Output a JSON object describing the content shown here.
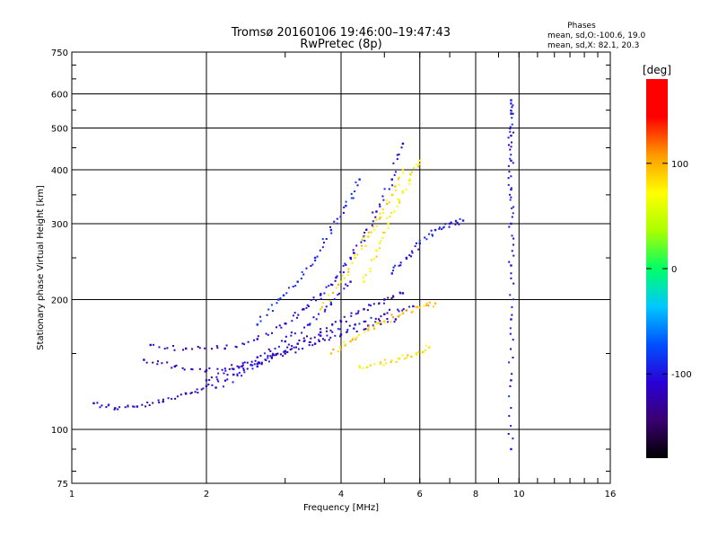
{
  "chart_data": {
    "type": "scatter",
    "title": "Tromsø 20160106 19:46:00–19:47:43",
    "subtitle": "RwPretec (8p)",
    "xlabel": "Frequency [MHz]",
    "ylabel": "Stationary phase Virtual Height [km]",
    "x_scale": "log",
    "y_scale": "log",
    "xlim": [
      1,
      16
    ],
    "ylim": [
      75,
      750
    ],
    "x_ticks": [
      1,
      2,
      4,
      6,
      8,
      10,
      16
    ],
    "y_ticks": [
      75,
      100,
      200,
      300,
      400,
      500,
      600,
      750
    ],
    "grid": true,
    "stats": {
      "heading": "Phases",
      "line_o": "mean, sd,O:-100.6, 19.0",
      "line_x": "mean, sd,X:  82.1, 20.3"
    },
    "colorbar": {
      "label": "[deg]",
      "min": -180,
      "max": 180,
      "ticks": [
        100,
        0,
        -100
      ],
      "stops": [
        "#000000",
        "#3a0070",
        "#2a00d6",
        "#0050ff",
        "#00c8ff",
        "#00ff66",
        "#aaff00",
        "#ffff00",
        "#ff9900",
        "#ff0000",
        "#ff0000"
      ]
    },
    "traces": [
      {
        "name": "",
        "color_phase": -110,
        "points": [
          [
            1.12,
            115
          ],
          [
            1.25,
            112
          ],
          [
            1.4,
            113
          ],
          [
            1.6,
            116
          ],
          [
            1.8,
            121
          ],
          [
            2.0,
            126
          ],
          [
            2.3,
            134
          ],
          [
            2.6,
            142
          ],
          [
            3.0,
            150
          ],
          [
            3.5,
            158
          ],
          [
            4.0,
            166
          ],
          [
            4.6,
            174
          ],
          [
            5.3,
            180
          ]
        ]
      },
      {
        "name": "",
        "color_phase": -115,
        "points": [
          [
            1.45,
            145
          ],
          [
            1.7,
            140
          ],
          [
            2.0,
            137
          ],
          [
            2.4,
            140
          ],
          [
            2.8,
            147
          ],
          [
            3.2,
            158
          ],
          [
            3.6,
            168
          ],
          [
            4.0,
            178
          ],
          [
            4.5,
            190
          ],
          [
            5.0,
            200
          ],
          [
            5.5,
            207
          ]
        ]
      },
      {
        "name": "",
        "color_phase": -110,
        "points": [
          [
            1.5,
            157
          ],
          [
            1.8,
            154
          ],
          [
            2.2,
            154
          ],
          [
            2.6,
            162
          ],
          [
            3.0,
            176
          ],
          [
            3.3,
            190
          ],
          [
            3.6,
            205
          ],
          [
            3.9,
            225
          ],
          [
            4.2,
            250
          ],
          [
            4.5,
            280
          ],
          [
            4.8,
            320
          ],
          [
            5.2,
            380
          ],
          [
            5.5,
            460
          ]
        ]
      },
      {
        "name": "",
        "color_phase": -100,
        "points": [
          [
            2.0,
            130
          ],
          [
            2.3,
            138
          ],
          [
            2.6,
            147
          ],
          [
            3.0,
            160
          ],
          [
            3.4,
            175
          ],
          [
            3.8,
            195
          ],
          [
            4.2,
            220
          ]
        ]
      },
      {
        "name": "",
        "color_phase": -105,
        "points": [
          [
            2.1,
            125
          ],
          [
            2.6,
            140
          ],
          [
            3.0,
            152
          ],
          [
            3.6,
            165
          ],
          [
            4.3,
            175
          ],
          [
            5.0,
            185
          ],
          [
            5.8,
            193
          ]
        ]
      },
      {
        "name": "",
        "color_phase": -90,
        "points": [
          [
            2.6,
            175
          ],
          [
            2.9,
            200
          ],
          [
            3.2,
            220
          ],
          [
            3.5,
            250
          ],
          [
            3.8,
            290
          ],
          [
            4.1,
            330
          ],
          [
            4.4,
            380
          ]
        ]
      },
      {
        "name": "",
        "color_phase": 85,
        "points": [
          [
            3.6,
            190
          ],
          [
            4.0,
            220
          ],
          [
            4.3,
            250
          ],
          [
            4.6,
            280
          ],
          [
            4.9,
            310
          ],
          [
            5.2,
            350
          ],
          [
            5.5,
            400
          ]
        ]
      },
      {
        "name": "",
        "color_phase": 95,
        "points": [
          [
            3.8,
            150
          ],
          [
            4.2,
            160
          ],
          [
            4.6,
            170
          ],
          [
            5.0,
            178
          ],
          [
            5.5,
            186
          ],
          [
            6.0,
            192
          ],
          [
            6.5,
            196
          ]
        ]
      },
      {
        "name": "",
        "color_phase": 80,
        "points": [
          [
            4.4,
            140
          ],
          [
            4.9,
            142
          ],
          [
            5.4,
            146
          ],
          [
            5.9,
            150
          ],
          [
            6.3,
            155
          ]
        ]
      },
      {
        "name": "",
        "color_phase": 75,
        "points": [
          [
            4.5,
            220
          ],
          [
            4.8,
            260
          ],
          [
            5.1,
            300
          ],
          [
            5.4,
            340
          ],
          [
            5.7,
            380
          ],
          [
            6.0,
            420
          ]
        ]
      },
      {
        "name": "",
        "color_phase": -95,
        "points": [
          [
            5.2,
            230
          ],
          [
            5.6,
            250
          ],
          [
            6.0,
            270
          ],
          [
            6.5,
            290
          ],
          [
            7.0,
            300
          ],
          [
            7.5,
            305
          ]
        ]
      },
      {
        "name": "",
        "color_phase": -100,
        "points": [
          [
            9.6,
            90
          ],
          [
            9.6,
            130
          ],
          [
            9.6,
            180
          ],
          [
            9.6,
            240
          ],
          [
            9.6,
            300
          ],
          [
            9.6,
            360
          ],
          [
            9.6,
            420
          ],
          [
            9.6,
            480
          ],
          [
            9.6,
            540
          ],
          [
            9.6,
            580
          ]
        ]
      }
    ]
  }
}
